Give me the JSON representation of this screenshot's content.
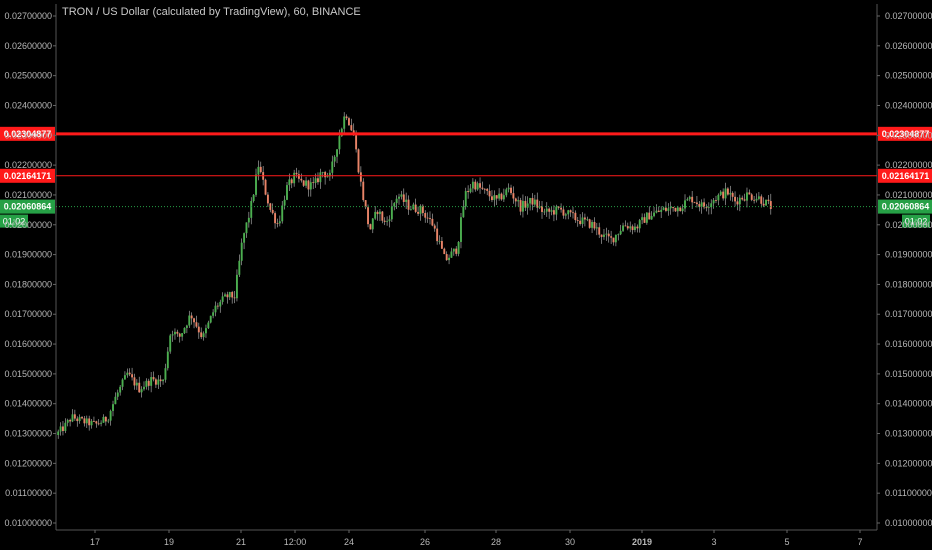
{
  "title": "TRON / US Dollar (calculated by TradingView), 60, BINANCE",
  "colors": {
    "background": "#000000",
    "candle_up": "#4caf50",
    "candle_down": "#e98468",
    "wick": "#bfbfbf",
    "resistance": "#ff1a1a",
    "current_price": "#26a046",
    "axis_text": "#b8b8b8"
  },
  "chart_data": {
    "type": "candlestick",
    "symbol": "TRXUSD",
    "interval": "60",
    "exchange": "BINANCE",
    "y_axis": {
      "range": [
        0.01,
        0.027
      ],
      "ticks": [
        "0.01000000",
        "0.01100000",
        "0.01200000",
        "0.01300000",
        "0.01400000",
        "0.01500000",
        "0.01600000",
        "0.01700000",
        "0.01800000",
        "0.01900000",
        "0.02000000",
        "0.02100000",
        "0.02200000",
        "0.02300000",
        "0.02400000",
        "0.02500000",
        "0.02600000",
        "0.02700000"
      ]
    },
    "x_axis": {
      "ticks": [
        "17",
        "19",
        "21",
        "12:00",
        "24",
        "26",
        "28",
        "30",
        "2019",
        "3",
        "5",
        "7"
      ]
    },
    "horizontal_lines": [
      {
        "value": 0.02304877,
        "label": "0.02304877",
        "style": "thick",
        "color": "#ff1a1a"
      },
      {
        "value": 0.02164171,
        "label": "0.02164171",
        "style": "thin",
        "color": "#ff1a1a"
      },
      {
        "value": 0.02060864,
        "label": "0.02060864",
        "style": "dotted",
        "color": "#26a046",
        "timer": "01:02"
      }
    ],
    "price_path": [
      [
        0,
        0.01295
      ],
      [
        0.01,
        0.0132
      ],
      [
        0.02,
        0.01355
      ],
      [
        0.035,
        0.0134
      ],
      [
        0.05,
        0.0133
      ],
      [
        0.065,
        0.0135
      ],
      [
        0.075,
        0.0142
      ],
      [
        0.09,
        0.015
      ],
      [
        0.105,
        0.0145
      ],
      [
        0.12,
        0.0148
      ],
      [
        0.135,
        0.01475
      ],
      [
        0.145,
        0.0165
      ],
      [
        0.155,
        0.0162
      ],
      [
        0.17,
        0.017
      ],
      [
        0.185,
        0.0162
      ],
      [
        0.2,
        0.0172
      ],
      [
        0.215,
        0.0176
      ],
      [
        0.225,
        0.0176
      ],
      [
        0.235,
        0.0195
      ],
      [
        0.245,
        0.0205
      ],
      [
        0.255,
        0.022
      ],
      [
        0.27,
        0.0205
      ],
      [
        0.28,
        0.02
      ],
      [
        0.29,
        0.0212
      ],
      [
        0.3,
        0.0216
      ],
      [
        0.31,
        0.0214
      ],
      [
        0.325,
        0.0213
      ],
      [
        0.335,
        0.0218
      ],
      [
        0.345,
        0.0216
      ],
      [
        0.355,
        0.0228
      ],
      [
        0.365,
        0.0238
      ],
      [
        0.375,
        0.023
      ],
      [
        0.385,
        0.0212
      ],
      [
        0.395,
        0.0198
      ],
      [
        0.405,
        0.0205
      ],
      [
        0.415,
        0.02
      ],
      [
        0.43,
        0.021
      ],
      [
        0.445,
        0.0206
      ],
      [
        0.46,
        0.0205
      ],
      [
        0.475,
        0.02
      ],
      [
        0.49,
        0.0188
      ],
      [
        0.505,
        0.0192
      ],
      [
        0.515,
        0.021
      ],
      [
        0.525,
        0.0214
      ],
      [
        0.54,
        0.0211
      ],
      [
        0.555,
        0.0208
      ],
      [
        0.57,
        0.0212
      ],
      [
        0.585,
        0.0206
      ],
      [
        0.6,
        0.0208
      ],
      [
        0.615,
        0.0204
      ],
      [
        0.635,
        0.0205
      ],
      [
        0.655,
        0.0202
      ],
      [
        0.675,
        0.02
      ],
      [
        0.69,
        0.0196
      ],
      [
        0.7,
        0.0195
      ],
      [
        0.715,
        0.02
      ],
      [
        0.73,
        0.0199
      ],
      [
        0.745,
        0.0203
      ],
      [
        0.765,
        0.0205
      ],
      [
        0.785,
        0.0206
      ],
      [
        0.8,
        0.0209
      ],
      [
        0.815,
        0.0206
      ],
      [
        0.83,
        0.0209
      ],
      [
        0.845,
        0.0211
      ],
      [
        0.855,
        0.0208
      ],
      [
        0.87,
        0.021
      ],
      [
        0.885,
        0.0209
      ],
      [
        0.9,
        0.02061
      ]
    ]
  }
}
